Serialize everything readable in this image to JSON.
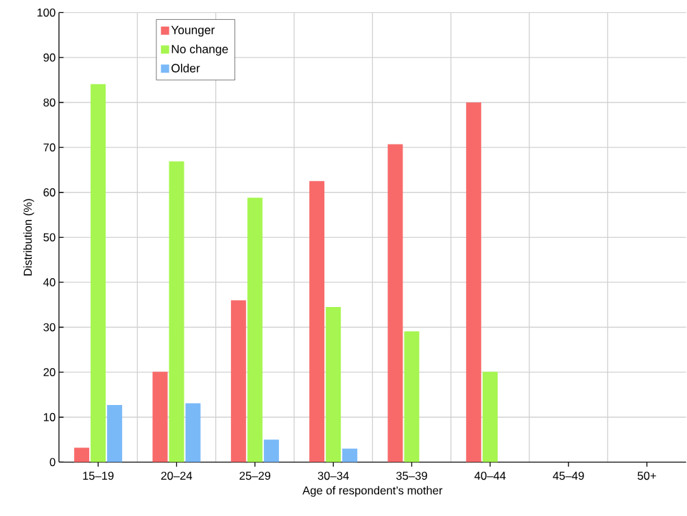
{
  "chart_data": {
    "type": "bar",
    "xlabel": "Age of respondent’s mother",
    "ylabel": "Distribution (%)",
    "categories": [
      "15–19",
      "20–24",
      "25–29",
      "30–34",
      "35–39",
      "40–44",
      "45–49",
      "50+"
    ],
    "series": [
      {
        "name": "Younger",
        "color": "#f86a6a",
        "values": [
          3.2,
          20.1,
          36.0,
          62.5,
          70.7,
          80.0,
          null,
          null
        ]
      },
      {
        "name": "No change",
        "color": "#a6f550",
        "values": [
          84.1,
          66.9,
          58.8,
          34.5,
          29.1,
          20.1,
          null,
          null
        ]
      },
      {
        "name": "Older",
        "color": "#7ab9f8",
        "values": [
          12.7,
          13.1,
          5.0,
          3.0,
          null,
          null,
          null,
          null
        ]
      }
    ],
    "ylim": [
      0,
      100
    ],
    "yticks": [
      0,
      10,
      20,
      30,
      40,
      50,
      60,
      70,
      80,
      90,
      100
    ],
    "grid": true,
    "legend": "top left"
  }
}
